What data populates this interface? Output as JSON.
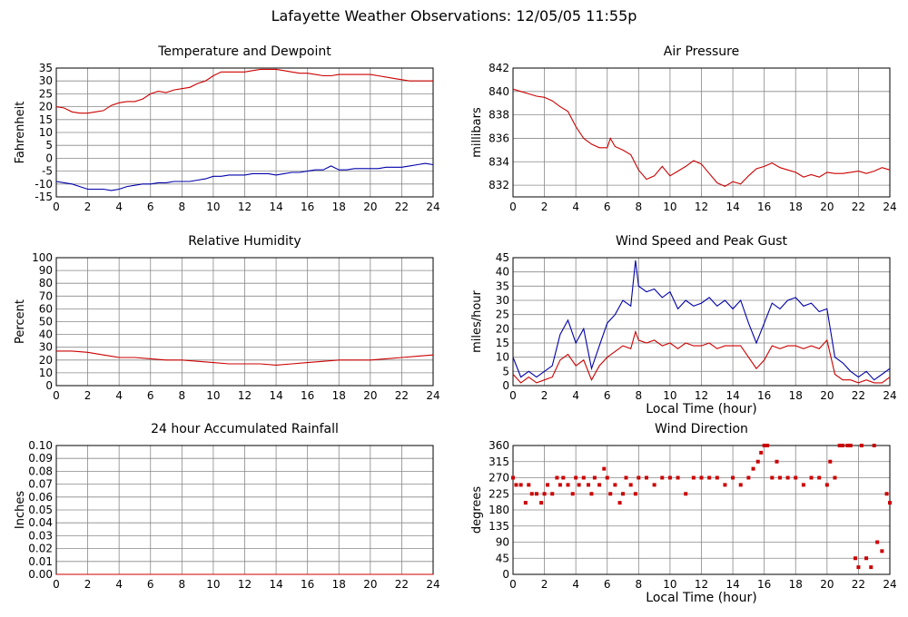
{
  "page": {
    "title": "Lafayette Weather Observations: 12/05/05 11:55p"
  },
  "colors": {
    "red": "#cc0000",
    "blue": "#0000aa",
    "grid": "#888888",
    "axis": "#000000"
  },
  "chart_data": [
    {
      "id": "temp",
      "type": "line",
      "title": "Temperature and Dewpoint",
      "ylabel": "Fahrenheit",
      "xlabel": "",
      "xlim": [
        0,
        24
      ],
      "ylim": [
        -15,
        35
      ],
      "xticks": [
        0,
        2,
        4,
        6,
        8,
        10,
        12,
        14,
        16,
        18,
        20,
        22,
        24
      ],
      "yticks": [
        -15,
        -10,
        -5,
        0,
        5,
        10,
        15,
        20,
        25,
        30,
        35
      ],
      "grid": true,
      "series": [
        {
          "color": "red",
          "x": [
            0,
            0.5,
            1,
            1.5,
            2,
            2.5,
            3,
            3.5,
            4,
            4.5,
            5,
            5.5,
            6,
            6.5,
            7,
            7.5,
            8,
            8.5,
            9,
            9.5,
            10,
            10.5,
            11,
            11.5,
            12,
            12.5,
            13,
            13.5,
            14,
            14.5,
            15,
            15.5,
            16,
            16.5,
            17,
            17.5,
            18,
            18.5,
            19,
            19.5,
            20,
            20.5,
            21,
            21.5,
            22,
            22.5,
            23,
            23.5,
            24
          ],
          "y": [
            20,
            19.5,
            18,
            17.5,
            17.5,
            18,
            18.5,
            20.5,
            21.5,
            22,
            22,
            23,
            25,
            26,
            25.5,
            26.5,
            27,
            27.5,
            29,
            30,
            32,
            33.5,
            33.5,
            33.5,
            33.5,
            34,
            34.5,
            34.5,
            34.5,
            34,
            33.5,
            33,
            33,
            32.5,
            32,
            32,
            32.5,
            32.5,
            32.5,
            32.5,
            32.5,
            32,
            31.5,
            31,
            30.5,
            30,
            30,
            30,
            30
          ]
        },
        {
          "color": "blue",
          "x": [
            0,
            0.5,
            1,
            1.5,
            2,
            2.5,
            3,
            3.5,
            4,
            4.5,
            5,
            5.5,
            6,
            6.5,
            7,
            7.5,
            8,
            8.5,
            9,
            9.5,
            10,
            10.5,
            11,
            11.5,
            12,
            12.5,
            13,
            13.5,
            14,
            14.5,
            15,
            15.5,
            16,
            16.5,
            17,
            17.5,
            18,
            18.5,
            19,
            19.5,
            20,
            20.5,
            21,
            21.5,
            22,
            22.5,
            23,
            23.5,
            24
          ],
          "y": [
            -9,
            -9.5,
            -10,
            -11,
            -12,
            -12,
            -12,
            -12.5,
            -12,
            -11,
            -10.5,
            -10,
            -10,
            -9.5,
            -9.5,
            -9,
            -9,
            -9,
            -8.5,
            -8,
            -7,
            -7,
            -6.5,
            -6.5,
            -6.5,
            -6,
            -6,
            -6,
            -6.5,
            -6,
            -5.5,
            -5.5,
            -5,
            -4.5,
            -4.5,
            -3,
            -4.5,
            -4.5,
            -4,
            -4,
            -4,
            -4,
            -3.5,
            -3.5,
            -3.5,
            -3,
            -2.5,
            -2,
            -2.5
          ]
        }
      ]
    },
    {
      "id": "pressure",
      "type": "line",
      "title": "Air Pressure",
      "ylabel": "millibars",
      "xlabel": "",
      "xlim": [
        0,
        24
      ],
      "ylim": [
        831,
        842
      ],
      "xticks": [
        0,
        2,
        4,
        6,
        8,
        10,
        12,
        14,
        16,
        18,
        20,
        22,
        24
      ],
      "yticks": [
        832,
        834,
        836,
        838,
        840,
        842
      ],
      "grid": true,
      "series": [
        {
          "color": "red",
          "x": [
            0,
            0.5,
            1,
            1.5,
            2,
            2.5,
            3,
            3.5,
            4,
            4.5,
            5,
            5.5,
            6,
            6.2,
            6.5,
            7,
            7.5,
            8,
            8.5,
            9,
            9.5,
            10,
            10.5,
            11,
            11.5,
            12,
            12.5,
            13,
            13.5,
            14,
            14.5,
            15,
            15.5,
            16,
            16.5,
            17,
            17.5,
            18,
            18.5,
            19,
            19.5,
            20,
            20.5,
            21,
            21.5,
            22,
            22.5,
            23,
            23.5,
            24
          ],
          "y": [
            840.2,
            840,
            839.8,
            839.6,
            839.5,
            839.2,
            838.7,
            838.3,
            837,
            836,
            835.5,
            835.2,
            835.2,
            836,
            835.3,
            835,
            834.6,
            833.3,
            832.5,
            832.8,
            833.6,
            832.8,
            833.2,
            833.6,
            834.1,
            833.8,
            833,
            832.2,
            831.9,
            832.3,
            832.1,
            832.8,
            833.4,
            833.6,
            833.9,
            833.5,
            833.3,
            833.1,
            832.7,
            832.9,
            832.7,
            833.1,
            833.0,
            833.0,
            833.1,
            833.2,
            833.0,
            833.2,
            833.5,
            833.3
          ]
        }
      ]
    },
    {
      "id": "humidity",
      "type": "line",
      "title": "Relative Humidity",
      "ylabel": "Percent",
      "xlabel": "",
      "xlim": [
        0,
        24
      ],
      "ylim": [
        0,
        100
      ],
      "xticks": [
        0,
        2,
        4,
        6,
        8,
        10,
        12,
        14,
        16,
        18,
        20,
        22,
        24
      ],
      "yticks": [
        0,
        10,
        20,
        30,
        40,
        50,
        60,
        70,
        80,
        90,
        100
      ],
      "grid": true,
      "series": [
        {
          "color": "red",
          "x": [
            0,
            1,
            2,
            3,
            4,
            5,
            6,
            7,
            8,
            9,
            10,
            11,
            12,
            13,
            14,
            15,
            16,
            17,
            18,
            19,
            20,
            21,
            22,
            23,
            24
          ],
          "y": [
            27,
            27,
            26,
            24,
            22,
            22,
            21,
            20,
            20,
            19,
            18,
            17,
            17,
            17,
            16,
            17,
            18,
            19,
            20,
            20,
            20,
            21,
            22,
            23,
            24
          ]
        }
      ]
    },
    {
      "id": "wind",
      "type": "line",
      "title": "Wind Speed and Peak Gust",
      "ylabel": "miles/hour",
      "xlabel": "Local Time (hour)",
      "xlim": [
        0,
        24
      ],
      "ylim": [
        0,
        45
      ],
      "xticks": [
        0,
        2,
        4,
        6,
        8,
        10,
        12,
        14,
        16,
        18,
        20,
        22,
        24
      ],
      "yticks": [
        0,
        5,
        10,
        15,
        20,
        25,
        30,
        35,
        40,
        45
      ],
      "grid": true,
      "series": [
        {
          "color": "blue",
          "x": [
            0,
            0.5,
            1,
            1.5,
            2,
            2.5,
            3,
            3.5,
            4,
            4.5,
            5,
            5.5,
            6,
            6.5,
            7,
            7.5,
            7.8,
            8,
            8.5,
            9,
            9.5,
            10,
            10.5,
            11,
            11.5,
            12,
            12.5,
            13,
            13.5,
            14,
            14.5,
            15,
            15.5,
            16,
            16.5,
            17,
            17.5,
            18,
            18.5,
            19,
            19.5,
            20,
            20.5,
            21,
            21.5,
            22,
            22.5,
            23,
            23.5,
            24
          ],
          "y": [
            10,
            3,
            5,
            3,
            5,
            7,
            18,
            23,
            15,
            20,
            6,
            14,
            22,
            25,
            30,
            28,
            44,
            35,
            33,
            34,
            31,
            33,
            27,
            30,
            28,
            29,
            31,
            28,
            30,
            27,
            30,
            22,
            15,
            22,
            29,
            27,
            30,
            31,
            28,
            29,
            26,
            27,
            10,
            8,
            5,
            3,
            5,
            2,
            4,
            6
          ]
        },
        {
          "color": "red",
          "x": [
            0,
            0.5,
            1,
            1.5,
            2,
            2.5,
            3,
            3.5,
            4,
            4.5,
            5,
            5.5,
            6,
            6.5,
            7,
            7.5,
            7.8,
            8,
            8.5,
            9,
            9.5,
            10,
            10.5,
            11,
            11.5,
            12,
            12.5,
            13,
            13.5,
            14,
            14.5,
            15,
            15.5,
            16,
            16.5,
            17,
            17.5,
            18,
            18.5,
            19,
            19.5,
            20,
            20.5,
            21,
            21.5,
            22,
            22.5,
            23,
            23.5,
            24
          ],
          "y": [
            4,
            1,
            3,
            1,
            2,
            3,
            9,
            11,
            7,
            9,
            2,
            7,
            10,
            12,
            14,
            13,
            19,
            16,
            15,
            16,
            14,
            15,
            13,
            15,
            14,
            14,
            15,
            13,
            14,
            14,
            14,
            10,
            6,
            9,
            14,
            13,
            14,
            14,
            13,
            14,
            13,
            16,
            4,
            2,
            2,
            1,
            2,
            1,
            1,
            3
          ]
        }
      ]
    },
    {
      "id": "rain",
      "type": "line",
      "title": "24 hour Accumulated Rainfall",
      "ylabel": "Inches",
      "xlabel": "",
      "xlim": [
        0,
        24
      ],
      "ylim": [
        0,
        0.1
      ],
      "xticks": [
        0,
        2,
        4,
        6,
        8,
        10,
        12,
        14,
        16,
        18,
        20,
        22,
        24
      ],
      "yticks": [
        0.0,
        0.01,
        0.02,
        0.03,
        0.04,
        0.05,
        0.06,
        0.07,
        0.08,
        0.09,
        0.1
      ],
      "ytickLabels": [
        "0.00",
        "0.01",
        "0.02",
        "0.03",
        "0.04",
        "0.05",
        "0.06",
        "0.07",
        "0.08",
        "0.09",
        "0.10"
      ],
      "grid": true,
      "series": [
        {
          "color": "red",
          "x": [
            0,
            24
          ],
          "y": [
            0,
            0
          ]
        }
      ]
    },
    {
      "id": "direction",
      "type": "scatter",
      "title": "Wind Direction",
      "ylabel": "degrees",
      "xlabel": "Local Time (hour)",
      "xlim": [
        0,
        24
      ],
      "ylim": [
        0,
        360
      ],
      "xticks": [
        0,
        2,
        4,
        6,
        8,
        10,
        12,
        14,
        16,
        18,
        20,
        22,
        24
      ],
      "yticks": [
        0,
        45,
        90,
        135,
        180,
        225,
        270,
        315,
        360
      ],
      "grid": true,
      "series": [
        {
          "color": "red",
          "x": [
            0,
            0.2,
            0.5,
            0.8,
            1,
            1.2,
            1.5,
            1.8,
            2,
            2.2,
            2.5,
            2.8,
            3,
            3.2,
            3.5,
            3.8,
            4,
            4.2,
            4.5,
            4.8,
            5,
            5.2,
            5.5,
            5.8,
            6,
            6.2,
            6.5,
            6.8,
            7,
            7.2,
            7.5,
            7.8,
            8,
            8.5,
            9,
            9.5,
            10,
            10.5,
            11,
            11.5,
            12,
            12.5,
            13,
            13.5,
            14,
            14.5,
            15,
            15.3,
            15.6,
            15.8,
            16,
            16.2,
            16.5,
            16.8,
            17,
            17.5,
            18,
            18.5,
            19,
            19.5,
            20,
            20.2,
            20.5,
            20.8,
            21,
            21.3,
            21.5,
            21.8,
            22,
            22.2,
            22.5,
            22.8,
            23,
            23.2,
            23.5,
            23.8,
            24
          ],
          "y": [
            270,
            250,
            250,
            200,
            250,
            225,
            225,
            200,
            225,
            250,
            225,
            270,
            250,
            270,
            250,
            225,
            270,
            250,
            270,
            250,
            225,
            270,
            250,
            295,
            270,
            225,
            250,
            200,
            225,
            270,
            250,
            225,
            270,
            270,
            250,
            270,
            270,
            270,
            225,
            270,
            270,
            270,
            270,
            250,
            270,
            250,
            270,
            295,
            315,
            340,
            360,
            360,
            270,
            315,
            270,
            270,
            270,
            250,
            270,
            270,
            250,
            315,
            270,
            360,
            360,
            360,
            360,
            45,
            20,
            360,
            45,
            20,
            360,
            90,
            65,
            225,
            200
          ]
        }
      ]
    }
  ]
}
